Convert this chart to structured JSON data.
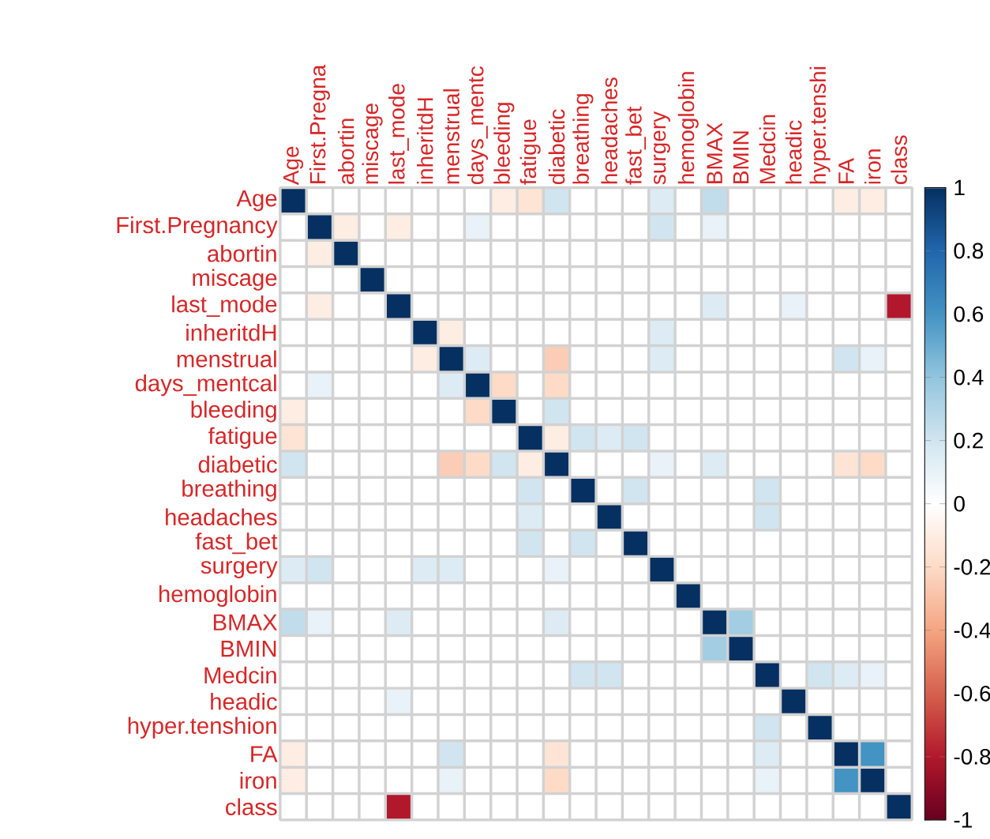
{
  "chart_data": {
    "type": "heatmap",
    "grid": true,
    "clim": [
      -1,
      1
    ],
    "cticks": [
      -1,
      -0.8,
      -0.6,
      -0.4,
      -0.2,
      0,
      0.2,
      0.4,
      0.6,
      0.8,
      1
    ],
    "categories": [
      "Age",
      "First.Pregna",
      "abortin",
      "miscage",
      "last_mode",
      "inheritdH",
      "menstrual",
      "days_mentc",
      "bleeding",
      "fatigue",
      "diabetic",
      "breathing",
      "headaches",
      "fast_bet",
      "surgery",
      "hemoglobin",
      "BMAX",
      "BMIN",
      "Medcin",
      "headic",
      "hyper.tenshi",
      "FA",
      "iron",
      "class"
    ],
    "y_categories": [
      "Age",
      "First.Pregnancy",
      "abortin",
      "miscage",
      "last_mode",
      "inheritdH",
      "menstrual",
      "days_mentcal",
      "bleeding",
      "fatigue",
      "diabetic",
      "breathing",
      "headaches",
      "fast_bet",
      "surgery",
      "hemoglobin",
      "BMAX",
      "BMIN",
      "Medcin",
      "headic",
      "hyper.tenshion",
      "FA",
      "iron",
      "class"
    ],
    "cells": [
      [
        1,
        0,
        0,
        0,
        0,
        0,
        0,
        0,
        -0.1,
        -0.15,
        0.2,
        0,
        0,
        0,
        0.15,
        0,
        0.25,
        0,
        0,
        0,
        0,
        -0.1,
        -0.1,
        0
      ],
      [
        0,
        1,
        -0.1,
        0,
        -0.1,
        0,
        0,
        0.1,
        0,
        0,
        0,
        0,
        0,
        0,
        0.2,
        0,
        0.1,
        0,
        0,
        0,
        0,
        0,
        0,
        0
      ],
      [
        0,
        -0.1,
        1,
        0,
        0,
        0,
        0,
        0,
        0,
        0,
        0,
        0,
        0,
        0,
        0,
        0,
        0,
        0,
        0,
        0,
        0,
        0,
        0,
        0
      ],
      [
        0,
        0,
        0,
        1,
        0,
        0,
        0,
        0,
        0,
        0,
        0,
        0,
        0,
        0,
        0,
        0,
        0,
        0,
        0,
        0,
        0,
        0,
        0,
        0
      ],
      [
        0,
        -0.1,
        0,
        0,
        1,
        0,
        0,
        0,
        0,
        0,
        0,
        0,
        0,
        0,
        0,
        0,
        0.15,
        0,
        0,
        0.1,
        0,
        0,
        0,
        -0.8
      ],
      [
        0,
        0,
        0,
        0,
        0,
        1,
        -0.1,
        0,
        0,
        0,
        0,
        0,
        0,
        0,
        0.15,
        0,
        0,
        0,
        0,
        0,
        0,
        0,
        0,
        0
      ],
      [
        0,
        0,
        0,
        0,
        0,
        -0.1,
        1,
        0.15,
        0,
        0,
        -0.25,
        0,
        0,
        0,
        0.15,
        0,
        0,
        0,
        0,
        0,
        0,
        0.2,
        0.1,
        0
      ],
      [
        0,
        0.1,
        0,
        0,
        0,
        0,
        0.15,
        1,
        -0.2,
        0,
        -0.2,
        0,
        0,
        0,
        0,
        0,
        0,
        0,
        0,
        0,
        0,
        0,
        0,
        0
      ],
      [
        -0.1,
        0,
        0,
        0,
        0,
        0,
        0,
        -0.2,
        1,
        0,
        0.2,
        0,
        0,
        0,
        0,
        0,
        0,
        0,
        0,
        0,
        0,
        0,
        0,
        0
      ],
      [
        -0.15,
        0,
        0,
        0,
        0,
        0,
        0,
        0,
        0,
        1,
        -0.1,
        0.2,
        0.15,
        0.2,
        0,
        0,
        0,
        0,
        0,
        0,
        0,
        0,
        0,
        0
      ],
      [
        0.2,
        0,
        0,
        0,
        0,
        0,
        -0.25,
        -0.2,
        0.2,
        -0.1,
        1,
        0,
        0,
        0,
        0.1,
        0,
        0.15,
        0,
        0,
        0,
        0,
        -0.15,
        -0.2,
        0
      ],
      [
        0,
        0,
        0,
        0,
        0,
        0,
        0,
        0,
        0,
        0.2,
        0,
        1,
        0,
        0.2,
        0,
        0,
        0,
        0,
        0.2,
        0,
        0,
        0,
        0,
        0
      ],
      [
        0,
        0,
        0,
        0,
        0,
        0,
        0,
        0,
        0,
        0.15,
        0,
        0,
        1,
        0,
        0,
        0,
        0,
        0,
        0.2,
        0,
        0,
        0,
        0,
        0
      ],
      [
        0,
        0,
        0,
        0,
        0,
        0,
        0,
        0,
        0,
        0.2,
        0,
        0.2,
        0,
        1,
        0,
        0,
        0,
        0,
        0,
        0,
        0,
        0,
        0,
        0
      ],
      [
        0.15,
        0.2,
        0,
        0,
        0,
        0.15,
        0.15,
        0,
        0,
        0,
        0.1,
        0,
        0,
        0,
        1,
        0,
        0,
        0,
        0,
        0,
        0,
        0,
        0,
        0
      ],
      [
        0,
        0,
        0,
        0,
        0,
        0,
        0,
        0,
        0,
        0,
        0,
        0,
        0,
        0,
        0,
        1,
        0,
        0,
        0,
        0,
        0,
        0,
        0,
        0
      ],
      [
        0.25,
        0.1,
        0,
        0,
        0.15,
        0,
        0,
        0,
        0,
        0,
        0.15,
        0,
        0,
        0,
        0,
        0,
        1,
        0.35,
        0,
        0,
        0,
        0,
        0,
        0
      ],
      [
        0,
        0,
        0,
        0,
        0,
        0,
        0,
        0,
        0,
        0,
        0,
        0,
        0,
        0,
        0,
        0,
        0.35,
        1,
        0,
        0,
        0,
        0,
        0,
        0
      ],
      [
        0,
        0,
        0,
        0,
        0,
        0,
        0,
        0,
        0,
        0,
        0,
        0.2,
        0.2,
        0,
        0,
        0,
        0,
        0,
        1,
        0,
        0.2,
        0.15,
        0.1,
        0
      ],
      [
        0,
        0,
        0,
        0,
        0.1,
        0,
        0,
        0,
        0,
        0,
        0,
        0,
        0,
        0,
        0,
        0,
        0,
        0,
        0,
        1,
        0,
        0,
        0,
        0
      ],
      [
        0,
        0,
        0,
        0,
        0,
        0,
        0,
        0,
        0,
        0,
        0,
        0,
        0,
        0,
        0,
        0,
        0,
        0,
        0.2,
        0,
        1,
        0,
        0,
        0
      ],
      [
        -0.1,
        0,
        0,
        0,
        0,
        0,
        0.2,
        0,
        0,
        0,
        -0.15,
        0,
        0,
        0,
        0,
        0,
        0,
        0,
        0.15,
        0,
        0,
        1,
        0.6,
        0
      ],
      [
        -0.1,
        0,
        0,
        0,
        0,
        0,
        0.1,
        0,
        0,
        0,
        -0.2,
        0,
        0,
        0,
        0,
        0,
        0,
        0,
        0.1,
        0,
        0,
        0.6,
        1,
        0
      ],
      [
        0,
        0,
        0,
        0,
        -0.8,
        0,
        0,
        0,
        0,
        0,
        0,
        0,
        0,
        0,
        0,
        0,
        0,
        0,
        0,
        0,
        0,
        0,
        0,
        1
      ]
    ]
  }
}
